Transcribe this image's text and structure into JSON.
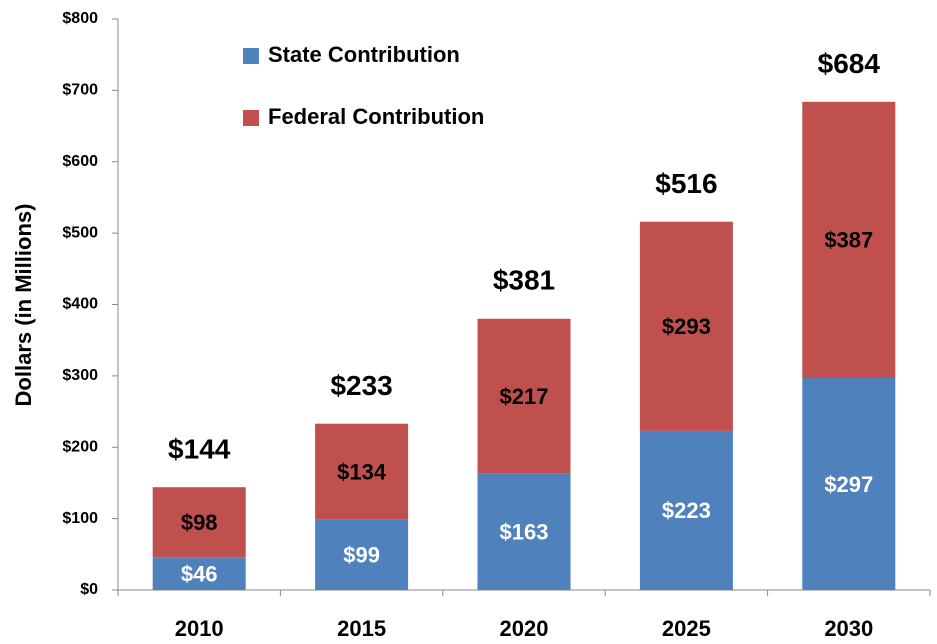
{
  "chart_data": {
    "type": "stacked_bar",
    "y_axis_label": "Dollars (in Millions)",
    "categories": [
      "2010",
      "2015",
      "2020",
      "2025",
      "2030"
    ],
    "series": [
      {
        "name": "State Contribution",
        "color": "#4f81bd",
        "values": [
          46,
          99,
          163,
          223,
          297
        ],
        "value_labels": [
          "$46",
          "$99",
          "$163",
          "$223",
          "$297"
        ]
      },
      {
        "name": "Federal Contribution",
        "color": "#c0504d",
        "values": [
          98,
          134,
          217,
          293,
          387
        ],
        "value_labels": [
          "$98",
          "$134",
          "$217",
          "$293",
          "$387"
        ]
      }
    ],
    "totals": [
      144,
      233,
      381,
      516,
      684
    ],
    "total_labels": [
      "$144",
      "$233",
      "$381",
      "$516",
      "$684"
    ],
    "ylim": [
      0,
      800
    ],
    "yticks": [
      {
        "value": 0,
        "label": "$0"
      },
      {
        "value": 100,
        "label": "$100"
      },
      {
        "value": 200,
        "label": "$200"
      },
      {
        "value": 300,
        "label": "$300"
      },
      {
        "value": 400,
        "label": "$400"
      },
      {
        "value": 500,
        "label": "$500"
      },
      {
        "value": 600,
        "label": "$600"
      },
      {
        "value": 700,
        "label": "$700"
      },
      {
        "value": 800,
        "label": "$800"
      }
    ],
    "legend": "top-left"
  }
}
